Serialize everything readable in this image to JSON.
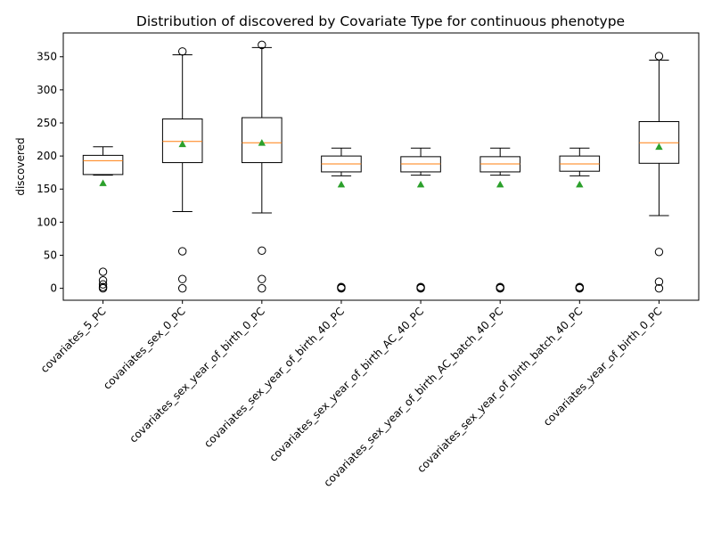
{
  "chart_data": {
    "type": "box",
    "title": "Distribution of discovered by Covariate Type for continuous phenotype",
    "xlabel": "",
    "ylabel": "discovered",
    "ylim": [
      -18,
      386
    ],
    "yticks": [
      0,
      50,
      100,
      150,
      200,
      250,
      300,
      350
    ],
    "grid": false,
    "show_means": true,
    "colors": {
      "box": "#000000",
      "median": "#ff7f0e",
      "mean": "#2ca02c",
      "flier": "#000000"
    },
    "categories": [
      "covariates_5_PC",
      "covariates_sex_0_PC",
      "covariates_sex_year_of_birth_0_PC",
      "covariates_sex_year_of_birth_40_PC",
      "covariates_sex_year_of_birth_AC_40_PC",
      "covariates_sex_year_of_birth_AC_batch_40_PC",
      "covariates_sex_year_of_birth_batch_40_PC",
      "covariates_year_of_birth_0_PC"
    ],
    "boxes": [
      {
        "whisker_low": 171,
        "q1": 172,
        "median": 193,
        "q3": 201,
        "whisker_high": 214,
        "mean": 159,
        "fliers": [
          25,
          12,
          6,
          2,
          0
        ]
      },
      {
        "whisker_low": 116,
        "q1": 190,
        "median": 222,
        "q3": 256,
        "whisker_high": 353,
        "mean": 218,
        "fliers": [
          358,
          56,
          14,
          0
        ]
      },
      {
        "whisker_low": 114,
        "q1": 190,
        "median": 220,
        "q3": 258,
        "whisker_high": 364,
        "mean": 220,
        "fliers": [
          368,
          57,
          14,
          0
        ]
      },
      {
        "whisker_low": 170,
        "q1": 176,
        "median": 188,
        "q3": 200,
        "whisker_high": 212,
        "mean": 157,
        "fliers": [
          2,
          1,
          0
        ]
      },
      {
        "whisker_low": 171,
        "q1": 176,
        "median": 188,
        "q3": 199,
        "whisker_high": 212,
        "mean": 157,
        "fliers": [
          2,
          1,
          0
        ]
      },
      {
        "whisker_low": 171,
        "q1": 176,
        "median": 188,
        "q3": 199,
        "whisker_high": 212,
        "mean": 157,
        "fliers": [
          2,
          1,
          0
        ]
      },
      {
        "whisker_low": 170,
        "q1": 177,
        "median": 188,
        "q3": 200,
        "whisker_high": 212,
        "mean": 157,
        "fliers": [
          2,
          1,
          0
        ]
      },
      {
        "whisker_low": 110,
        "q1": 189,
        "median": 220,
        "q3": 252,
        "whisker_high": 345,
        "mean": 214,
        "fliers": [
          351,
          55,
          10,
          0
        ]
      }
    ]
  }
}
